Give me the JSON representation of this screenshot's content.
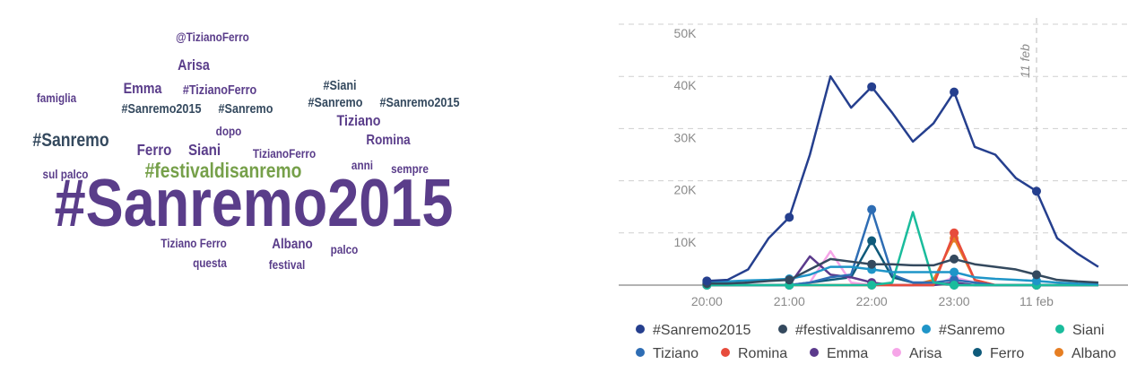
{
  "word_cloud": {
    "words": [
      "@TizianoFerro",
      "Arisa",
      "famiglia",
      "Emma",
      "#TizianoFerro",
      "#Siani",
      "#Sanremo2015",
      "#Sanremo",
      "#Sanremo",
      "#Sanremo2015",
      "Tiziano",
      "dopo",
      "#Sanremo",
      "Ferro",
      "Siani",
      "TizianoFerro",
      "Romina",
      "anni",
      "sempre",
      "sul palco",
      "#festivaldisanremo",
      "#Sanremo2015",
      "Tiziano Ferro",
      "Albano",
      "palco",
      "questa",
      "festival"
    ]
  },
  "chart_data": {
    "type": "line",
    "x": [
      20,
      20.25,
      20.5,
      20.75,
      21,
      21.25,
      21.5,
      21.75,
      22,
      22.25,
      22.5,
      22.75,
      23,
      23.25,
      23.5,
      23.75,
      24,
      24.25,
      24.5,
      24.75
    ],
    "xlim": [
      18.93,
      25.11
    ],
    "xticks": [
      {
        "value": 20,
        "label": "20:00"
      },
      {
        "value": 21,
        "label": "21:00"
      },
      {
        "value": 22,
        "label": "22:00"
      },
      {
        "value": 23,
        "label": "23:00"
      },
      {
        "value": 24,
        "label": "11 feb"
      }
    ],
    "ylim": [
      0,
      50000
    ],
    "yticks": [
      {
        "value": 10000,
        "label": "10K"
      },
      {
        "value": 20000,
        "label": "20K"
      },
      {
        "value": 30000,
        "label": "30K"
      },
      {
        "value": 40000,
        "label": "40K"
      },
      {
        "value": 50000,
        "label": "50K"
      }
    ],
    "grid": true,
    "annotations": [
      {
        "x": 24,
        "label": "11 feb"
      }
    ],
    "series": [
      {
        "name": "#Sanremo2015",
        "color": "#253f8e",
        "values": [
          800,
          1000,
          3000,
          9000,
          13000,
          25000,
          40000,
          34000,
          38000,
          33000,
          27500,
          31000,
          37000,
          26500,
          25000,
          20500,
          18000,
          9000,
          6000,
          3500
        ]
      },
      {
        "name": "#festivaldisanremo",
        "color": "#34495e",
        "values": [
          300,
          300,
          500,
          800,
          1000,
          3000,
          5000,
          4500,
          4000,
          4000,
          3800,
          3800,
          5000,
          4000,
          3500,
          3000,
          2000,
          1000,
          700,
          500
        ]
      },
      {
        "name": "#Sanremo",
        "color": "#1f95c8",
        "values": [
          500,
          700,
          900,
          1000,
          1200,
          2000,
          3500,
          3500,
          3000,
          2500,
          2500,
          2500,
          2500,
          1500,
          1200,
          1000,
          800,
          500,
          300,
          200
        ]
      },
      {
        "name": "Siani",
        "color": "#1abc9c",
        "values": [
          0,
          0,
          0,
          0,
          0,
          0,
          0,
          0,
          0,
          500,
          14000,
          500,
          0,
          0,
          0,
          0,
          0,
          0,
          0,
          0
        ]
      },
      {
        "name": "Tiziano",
        "color": "#2e6db4",
        "values": [
          0,
          0,
          0,
          0,
          0,
          500,
          1500,
          2000,
          14500,
          2000,
          500,
          500,
          1000,
          500,
          0,
          0,
          0,
          0,
          0,
          0
        ]
      },
      {
        "name": "Romina",
        "color": "#e74c3c",
        "values": [
          0,
          0,
          0,
          0,
          0,
          0,
          0,
          0,
          0,
          0,
          0,
          0,
          10000,
          1000,
          0,
          0,
          0,
          0,
          0,
          0
        ]
      },
      {
        "name": "Emma",
        "color": "#5b3a8c",
        "values": [
          0,
          0,
          0,
          0,
          0,
          5500,
          2000,
          1500,
          500,
          0,
          0,
          0,
          500,
          0,
          0,
          0,
          0,
          0,
          0,
          0
        ]
      },
      {
        "name": "Arisa",
        "color": "#f6a5e8",
        "values": [
          0,
          0,
          0,
          0,
          0,
          500,
          6500,
          500,
          0,
          0,
          0,
          0,
          1500,
          500,
          0,
          0,
          0,
          0,
          0,
          0
        ]
      },
      {
        "name": "Ferro",
        "color": "#0f5a7a",
        "values": [
          0,
          0,
          0,
          0,
          0,
          500,
          1000,
          1500,
          8500,
          1500,
          500,
          500,
          0,
          0,
          0,
          0,
          0,
          0,
          0,
          0
        ]
      },
      {
        "name": "Albano",
        "color": "#e67e22",
        "values": [
          0,
          0,
          0,
          0,
          0,
          0,
          0,
          0,
          0,
          0,
          0,
          1000,
          9000,
          1000,
          0,
          0,
          0,
          0,
          0,
          0
        ]
      }
    ]
  }
}
